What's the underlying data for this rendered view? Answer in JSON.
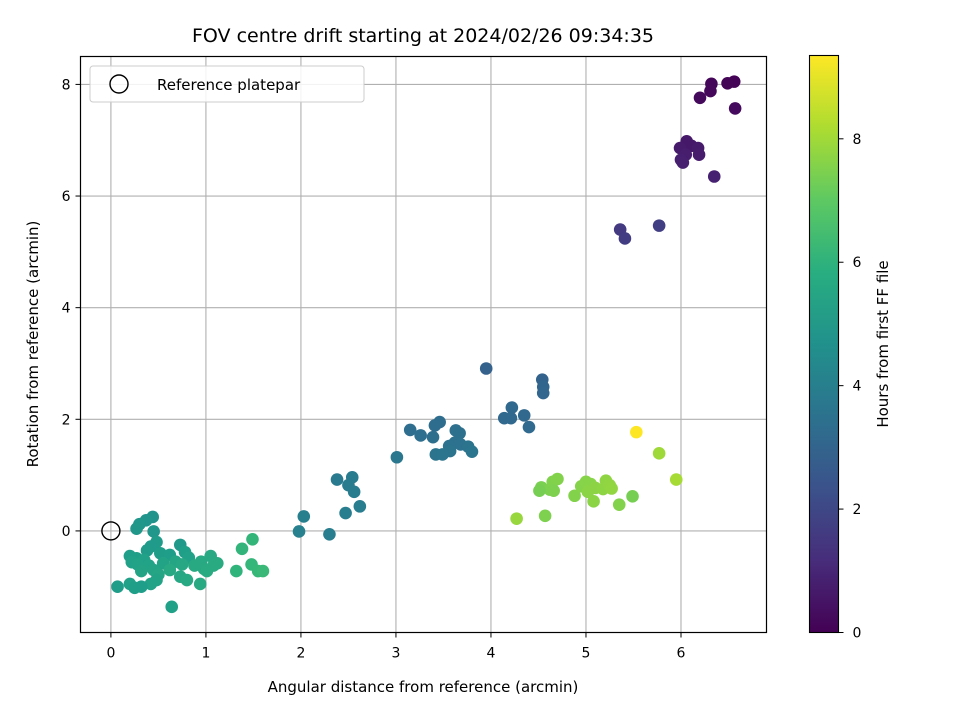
{
  "chart_data": {
    "type": "scatter",
    "title": "FOV centre drift starting at 2024/02/26 09:34:35",
    "xlabel": "Angular distance from reference (arcmin)",
    "ylabel": "Rotation from reference (arcmin)",
    "xlim": [
      -0.32,
      6.9
    ],
    "ylim": [
      -1.82,
      8.5
    ],
    "xticks": [
      0,
      1,
      2,
      3,
      4,
      5,
      6
    ],
    "yticks": [
      0,
      2,
      4,
      6,
      8
    ],
    "grid": true,
    "legend": {
      "position": "top-left",
      "entries": [
        "Reference platepar"
      ]
    },
    "reference_point": {
      "x": 0,
      "y": 0,
      "label": "Reference platepar"
    },
    "colorbar": {
      "label": "Hours from first FF file",
      "colormap": "viridis",
      "range": [
        0,
        9.35
      ],
      "ticks": [
        0,
        2,
        4,
        6,
        8
      ]
    },
    "points": [
      {
        "x": 6.56,
        "y": 8.05,
        "t": 0.05
      },
      {
        "x": 6.49,
        "y": 8.02,
        "t": 0.1
      },
      {
        "x": 6.32,
        "y": 8.01,
        "t": 0.12
      },
      {
        "x": 6.31,
        "y": 7.88,
        "t": 0.15
      },
      {
        "x": 6.2,
        "y": 7.76,
        "t": 0.2
      },
      {
        "x": 6.57,
        "y": 7.57,
        "t": 0.25
      },
      {
        "x": 6.06,
        "y": 6.98,
        "t": 0.6
      },
      {
        "x": 6.02,
        "y": 6.84,
        "t": 0.65
      },
      {
        "x": 6.11,
        "y": 6.9,
        "t": 0.62
      },
      {
        "x": 5.99,
        "y": 6.86,
        "t": 0.7
      },
      {
        "x": 6.18,
        "y": 6.86,
        "t": 0.68
      },
      {
        "x": 6.19,
        "y": 6.74,
        "t": 0.72
      },
      {
        "x": 6.05,
        "y": 6.74,
        "t": 0.75
      },
      {
        "x": 6.0,
        "y": 6.65,
        "t": 0.8
      },
      {
        "x": 6.02,
        "y": 6.6,
        "t": 0.82
      },
      {
        "x": 6.35,
        "y": 6.35,
        "t": 0.85
      },
      {
        "x": 5.36,
        "y": 5.4,
        "t": 1.6
      },
      {
        "x": 5.41,
        "y": 5.24,
        "t": 1.65
      },
      {
        "x": 5.77,
        "y": 5.47,
        "t": 1.7
      },
      {
        "x": 3.95,
        "y": 2.91,
        "t": 2.9
      },
      {
        "x": 4.54,
        "y": 2.71,
        "t": 2.95
      },
      {
        "x": 4.55,
        "y": 2.58,
        "t": 3.0
      },
      {
        "x": 4.55,
        "y": 2.47,
        "t": 3.05
      },
      {
        "x": 4.22,
        "y": 2.21,
        "t": 3.1
      },
      {
        "x": 4.14,
        "y": 2.02,
        "t": 3.1
      },
      {
        "x": 4.21,
        "y": 2.02,
        "t": 3.12
      },
      {
        "x": 4.35,
        "y": 2.07,
        "t": 3.15
      },
      {
        "x": 4.4,
        "y": 1.86,
        "t": 3.2
      },
      {
        "x": 3.46,
        "y": 1.95,
        "t": 3.3
      },
      {
        "x": 3.41,
        "y": 1.89,
        "t": 3.32
      },
      {
        "x": 3.15,
        "y": 1.81,
        "t": 3.35
      },
      {
        "x": 3.26,
        "y": 1.71,
        "t": 3.37
      },
      {
        "x": 3.39,
        "y": 1.68,
        "t": 3.4
      },
      {
        "x": 3.63,
        "y": 1.8,
        "t": 3.42
      },
      {
        "x": 3.67,
        "y": 1.75,
        "t": 3.45
      },
      {
        "x": 3.62,
        "y": 1.58,
        "t": 3.47
      },
      {
        "x": 3.68,
        "y": 1.55,
        "t": 3.5
      },
      {
        "x": 3.56,
        "y": 1.52,
        "t": 3.52
      },
      {
        "x": 3.76,
        "y": 1.51,
        "t": 3.55
      },
      {
        "x": 3.57,
        "y": 1.43,
        "t": 3.57
      },
      {
        "x": 3.42,
        "y": 1.37,
        "t": 3.6
      },
      {
        "x": 3.49,
        "y": 1.37,
        "t": 3.62
      },
      {
        "x": 3.8,
        "y": 1.42,
        "t": 3.65
      },
      {
        "x": 3.01,
        "y": 1.32,
        "t": 3.7
      },
      {
        "x": 2.38,
        "y": 0.92,
        "t": 3.85
      },
      {
        "x": 2.54,
        "y": 0.96,
        "t": 3.87
      },
      {
        "x": 2.5,
        "y": 0.82,
        "t": 3.9
      },
      {
        "x": 2.56,
        "y": 0.7,
        "t": 3.92
      },
      {
        "x": 2.62,
        "y": 0.44,
        "t": 3.95
      },
      {
        "x": 2.47,
        "y": 0.32,
        "t": 3.97
      },
      {
        "x": 2.03,
        "y": 0.26,
        "t": 4.05
      },
      {
        "x": 1.98,
        "y": -0.01,
        "t": 4.1
      },
      {
        "x": 2.3,
        "y": -0.06,
        "t": 4.0
      },
      {
        "x": 0.44,
        "y": 0.25,
        "t": 4.8
      },
      {
        "x": 0.37,
        "y": 0.19,
        "t": 4.85
      },
      {
        "x": 0.3,
        "y": 0.12,
        "t": 4.9
      },
      {
        "x": 0.27,
        "y": 0.04,
        "t": 4.95
      },
      {
        "x": 0.45,
        "y": -0.01,
        "t": 4.9
      },
      {
        "x": 0.73,
        "y": -0.25,
        "t": 5.0
      },
      {
        "x": 0.48,
        "y": -0.2,
        "t": 5.1
      },
      {
        "x": 0.42,
        "y": -0.28,
        "t": 5.05
      },
      {
        "x": 0.38,
        "y": -0.35,
        "t": 5.1
      },
      {
        "x": 0.52,
        "y": -0.4,
        "t": 5.15
      },
      {
        "x": 0.62,
        "y": -0.43,
        "t": 5.2
      },
      {
        "x": 0.78,
        "y": -0.38,
        "t": 5.25
      },
      {
        "x": 0.82,
        "y": -0.48,
        "t": 5.3
      },
      {
        "x": 0.2,
        "y": -0.45,
        "t": 5.2
      },
      {
        "x": 0.27,
        "y": -0.49,
        "t": 5.25
      },
      {
        "x": 0.35,
        "y": -0.52,
        "t": 5.3
      },
      {
        "x": 0.22,
        "y": -0.56,
        "t": 5.3
      },
      {
        "x": 0.28,
        "y": -0.6,
        "t": 5.35
      },
      {
        "x": 0.4,
        "y": -0.62,
        "t": 5.35
      },
      {
        "x": 0.55,
        "y": -0.58,
        "t": 5.4
      },
      {
        "x": 0.45,
        "y": -0.7,
        "t": 5.45
      },
      {
        "x": 0.32,
        "y": -0.72,
        "t": 5.45
      },
      {
        "x": 0.5,
        "y": -0.78,
        "t": 5.5
      },
      {
        "x": 0.68,
        "y": -0.55,
        "t": 5.5
      },
      {
        "x": 0.75,
        "y": -0.6,
        "t": 5.55
      },
      {
        "x": 0.95,
        "y": -0.55,
        "t": 5.6
      },
      {
        "x": 1.05,
        "y": -0.45,
        "t": 5.6
      },
      {
        "x": 0.88,
        "y": -0.62,
        "t": 5.65
      },
      {
        "x": 0.98,
        "y": -0.68,
        "t": 5.65
      },
      {
        "x": 1.08,
        "y": -0.62,
        "t": 5.7
      },
      {
        "x": 1.12,
        "y": -0.58,
        "t": 5.7
      },
      {
        "x": 0.62,
        "y": -0.7,
        "t": 5.6
      },
      {
        "x": 0.73,
        "y": -0.82,
        "t": 5.55
      },
      {
        "x": 0.8,
        "y": -0.88,
        "t": 5.6
      },
      {
        "x": 0.94,
        "y": -0.95,
        "t": 5.65
      },
      {
        "x": 0.48,
        "y": -0.88,
        "t": 5.4
      },
      {
        "x": 0.42,
        "y": -0.95,
        "t": 5.35
      },
      {
        "x": 0.2,
        "y": -0.95,
        "t": 5.3
      },
      {
        "x": 0.25,
        "y": -1.02,
        "t": 5.25
      },
      {
        "x": 0.32,
        "y": -1.0,
        "t": 5.2
      },
      {
        "x": 0.07,
        "y": -1.0,
        "t": 5.15
      },
      {
        "x": 0.64,
        "y": -1.36,
        "t": 5.3
      },
      {
        "x": 1.01,
        "y": -0.72,
        "t": 5.7
      },
      {
        "x": 1.49,
        "y": -0.15,
        "t": 6.15
      },
      {
        "x": 1.38,
        "y": -0.32,
        "t": 6.1
      },
      {
        "x": 1.48,
        "y": -0.6,
        "t": 6.2
      },
      {
        "x": 1.32,
        "y": -0.72,
        "t": 6.05
      },
      {
        "x": 1.55,
        "y": -0.72,
        "t": 6.25
      },
      {
        "x": 1.6,
        "y": -0.72,
        "t": 6.3
      },
      {
        "x": 4.53,
        "y": 0.78,
        "t": 7.45
      },
      {
        "x": 4.62,
        "y": 0.74,
        "t": 7.5
      },
      {
        "x": 4.51,
        "y": 0.72,
        "t": 7.4
      },
      {
        "x": 4.65,
        "y": 0.88,
        "t": 7.55
      },
      {
        "x": 4.7,
        "y": 0.93,
        "t": 7.6
      },
      {
        "x": 4.66,
        "y": 0.72,
        "t": 7.5
      },
      {
        "x": 4.88,
        "y": 0.63,
        "t": 7.6
      },
      {
        "x": 4.95,
        "y": 0.8,
        "t": 7.62
      },
      {
        "x": 5.0,
        "y": 0.88,
        "t": 7.65
      },
      {
        "x": 5.05,
        "y": 0.84,
        "t": 7.67
      },
      {
        "x": 5.02,
        "y": 0.7,
        "t": 7.7
      },
      {
        "x": 5.1,
        "y": 0.77,
        "t": 7.72
      },
      {
        "x": 5.18,
        "y": 0.75,
        "t": 7.75
      },
      {
        "x": 5.21,
        "y": 0.9,
        "t": 7.77
      },
      {
        "x": 5.25,
        "y": 0.82,
        "t": 7.8
      },
      {
        "x": 5.27,
        "y": 0.76,
        "t": 7.82
      },
      {
        "x": 5.08,
        "y": 0.53,
        "t": 7.7
      },
      {
        "x": 5.35,
        "y": 0.47,
        "t": 7.6
      },
      {
        "x": 5.49,
        "y": 0.62,
        "t": 7.4
      },
      {
        "x": 4.27,
        "y": 0.22,
        "t": 7.9
      },
      {
        "x": 4.57,
        "y": 0.27,
        "t": 7.5
      },
      {
        "x": 5.77,
        "y": 1.39,
        "t": 8.0
      },
      {
        "x": 5.95,
        "y": 0.92,
        "t": 8.1
      },
      {
        "x": 5.53,
        "y": 1.77,
        "t": 9.35
      }
    ]
  }
}
